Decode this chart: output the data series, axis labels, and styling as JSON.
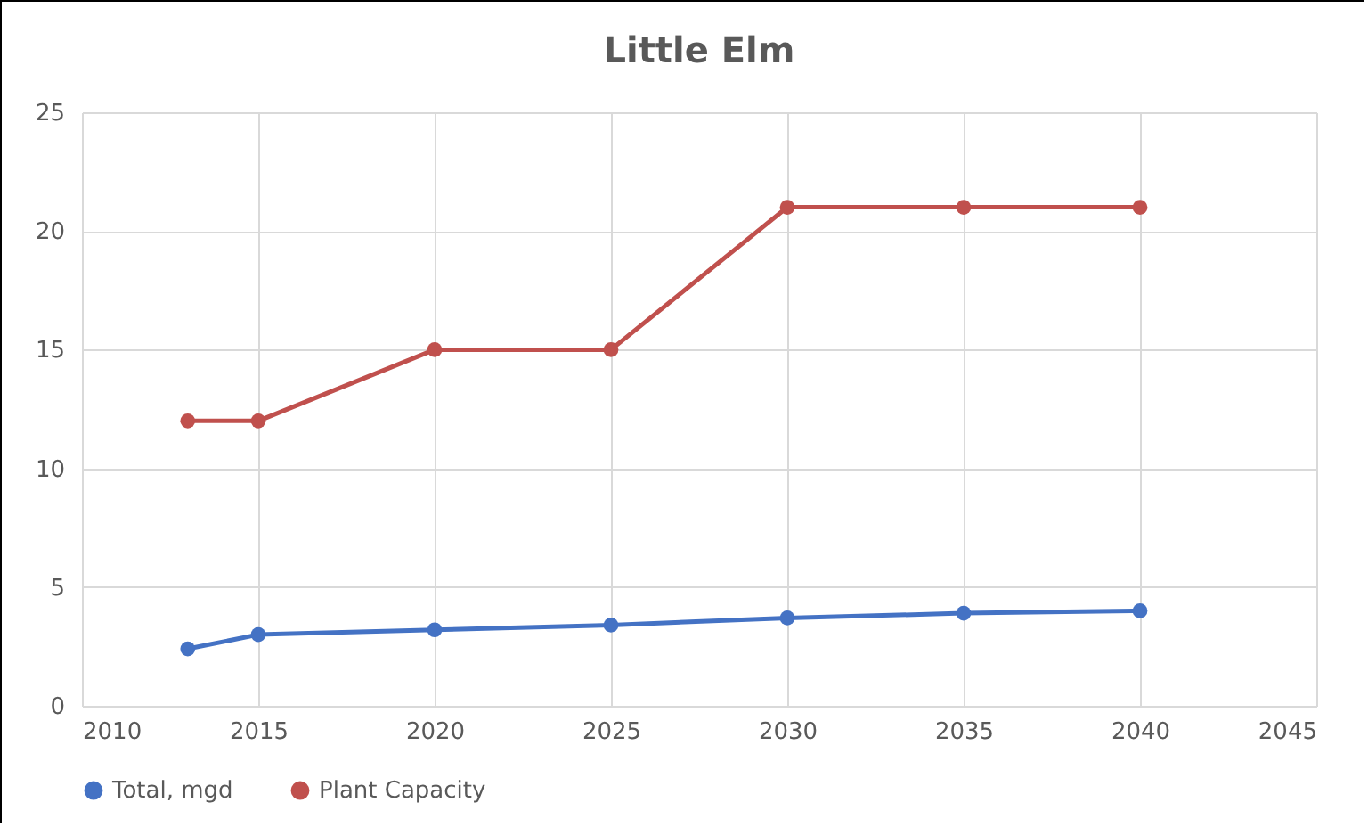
{
  "chart_data": {
    "type": "line",
    "title": "Little Elm",
    "x": [
      2013,
      2015,
      2020,
      2025,
      2030,
      2035,
      2040
    ],
    "series": [
      {
        "name": "Total, mgd",
        "color": "#4472c4",
        "values": [
          2.4,
          3.0,
          3.2,
          3.4,
          3.7,
          3.9,
          4.0
        ]
      },
      {
        "name": "Plant Capacity",
        "color": "#c0504d",
        "values": [
          12,
          12,
          15,
          15,
          21,
          21,
          21
        ]
      }
    ],
    "xlim": [
      2010,
      2045
    ],
    "xticks": [
      2010,
      2015,
      2020,
      2025,
      2030,
      2035,
      2040,
      2045
    ],
    "ylim": [
      0,
      25
    ],
    "yticks": [
      0,
      5,
      10,
      15,
      20,
      25
    ],
    "grid": true,
    "legend": "bottom",
    "marker": "circle",
    "line_style": "solid"
  }
}
